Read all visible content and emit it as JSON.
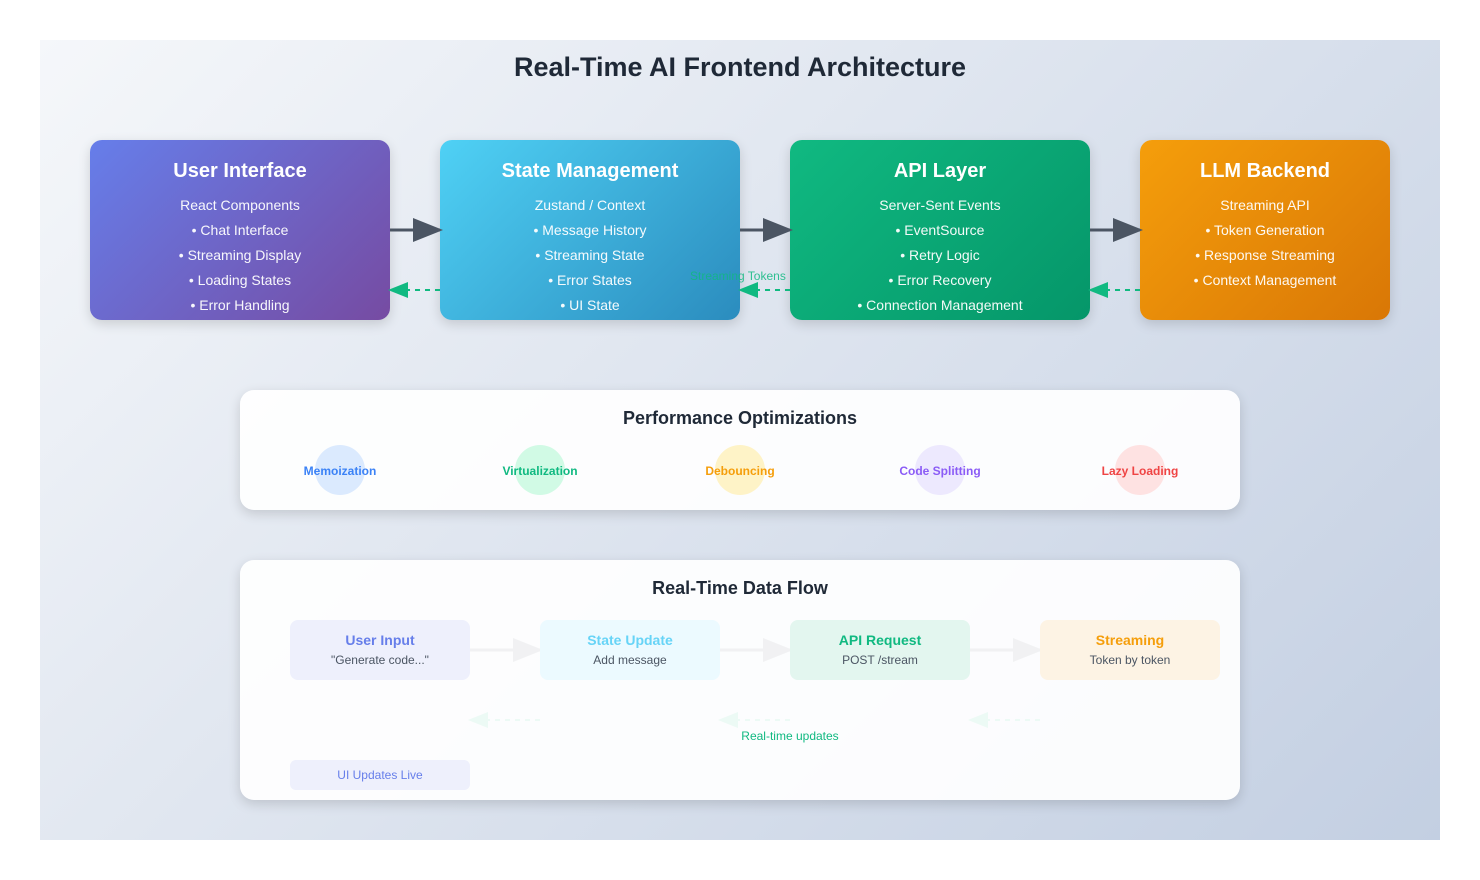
{
  "title": "Real-Time AI Frontend Architecture",
  "layers": [
    {
      "title": "User Interface",
      "items": [
        "React Components",
        "• Chat Interface",
        "• Streaming Display",
        "• Loading States",
        "• Error Handling"
      ],
      "colors": [
        "#667eea",
        "#764ba2"
      ]
    },
    {
      "title": "State Management",
      "items": [
        "Zustand / Context",
        "• Message History",
        "• Streaming State",
        "• Error States",
        "• UI State"
      ],
      "colors": [
        "#4fd1f5",
        "#2b8cbe"
      ]
    },
    {
      "title": "API Layer",
      "items": [
        "Server-Sent Events",
        "• EventSource",
        "• Retry Logic",
        "• Error Recovery",
        "• Connection Management"
      ],
      "colors": [
        "#10b981",
        "#059669"
      ]
    },
    {
      "title": "LLM Backend",
      "items": [
        "Streaming API",
        "• Token Generation",
        "• Response Streaming",
        "• Context Management"
      ],
      "colors": [
        "#f59e0b",
        "#d97706"
      ]
    }
  ],
  "streaming_tokens_label": "Streaming Tokens",
  "performance": {
    "title": "Performance Optimizations",
    "items": [
      {
        "label": "Memoization",
        "color": "#3b82f6",
        "bg": "#dbeafe"
      },
      {
        "label": "Virtualization",
        "color": "#10b981",
        "bg": "#d1fae5"
      },
      {
        "label": "Debouncing",
        "color": "#f59e0b",
        "bg": "#fef3c7"
      },
      {
        "label": "Code Splitting",
        "color": "#8b5cf6",
        "bg": "#ede9fe"
      },
      {
        "label": "Lazy Loading",
        "color": "#ef4444",
        "bg": "#fee2e2"
      }
    ]
  },
  "flow": {
    "title": "Real-Time Data Flow",
    "steps": [
      {
        "title": "User Input",
        "sub": "\"Generate code...\"",
        "color": "#667eea",
        "bg": "#eef0fc"
      },
      {
        "title": "State Update",
        "sub": "Add message",
        "color": "#67d4f7",
        "bg": "#ecfaff"
      },
      {
        "title": "API Request",
        "sub": "POST /stream",
        "color": "#10b981",
        "bg": "#e3f6ef"
      },
      {
        "title": "Streaming",
        "sub": "Token by token",
        "color": "#f59e0b",
        "bg": "#fdf3e4"
      }
    ],
    "realtime_label": "Real-time updates",
    "ui_updates_label": "UI Updates Live"
  },
  "colors": {
    "arrow": "#4b5563",
    "return_arrow": "#10b981"
  }
}
